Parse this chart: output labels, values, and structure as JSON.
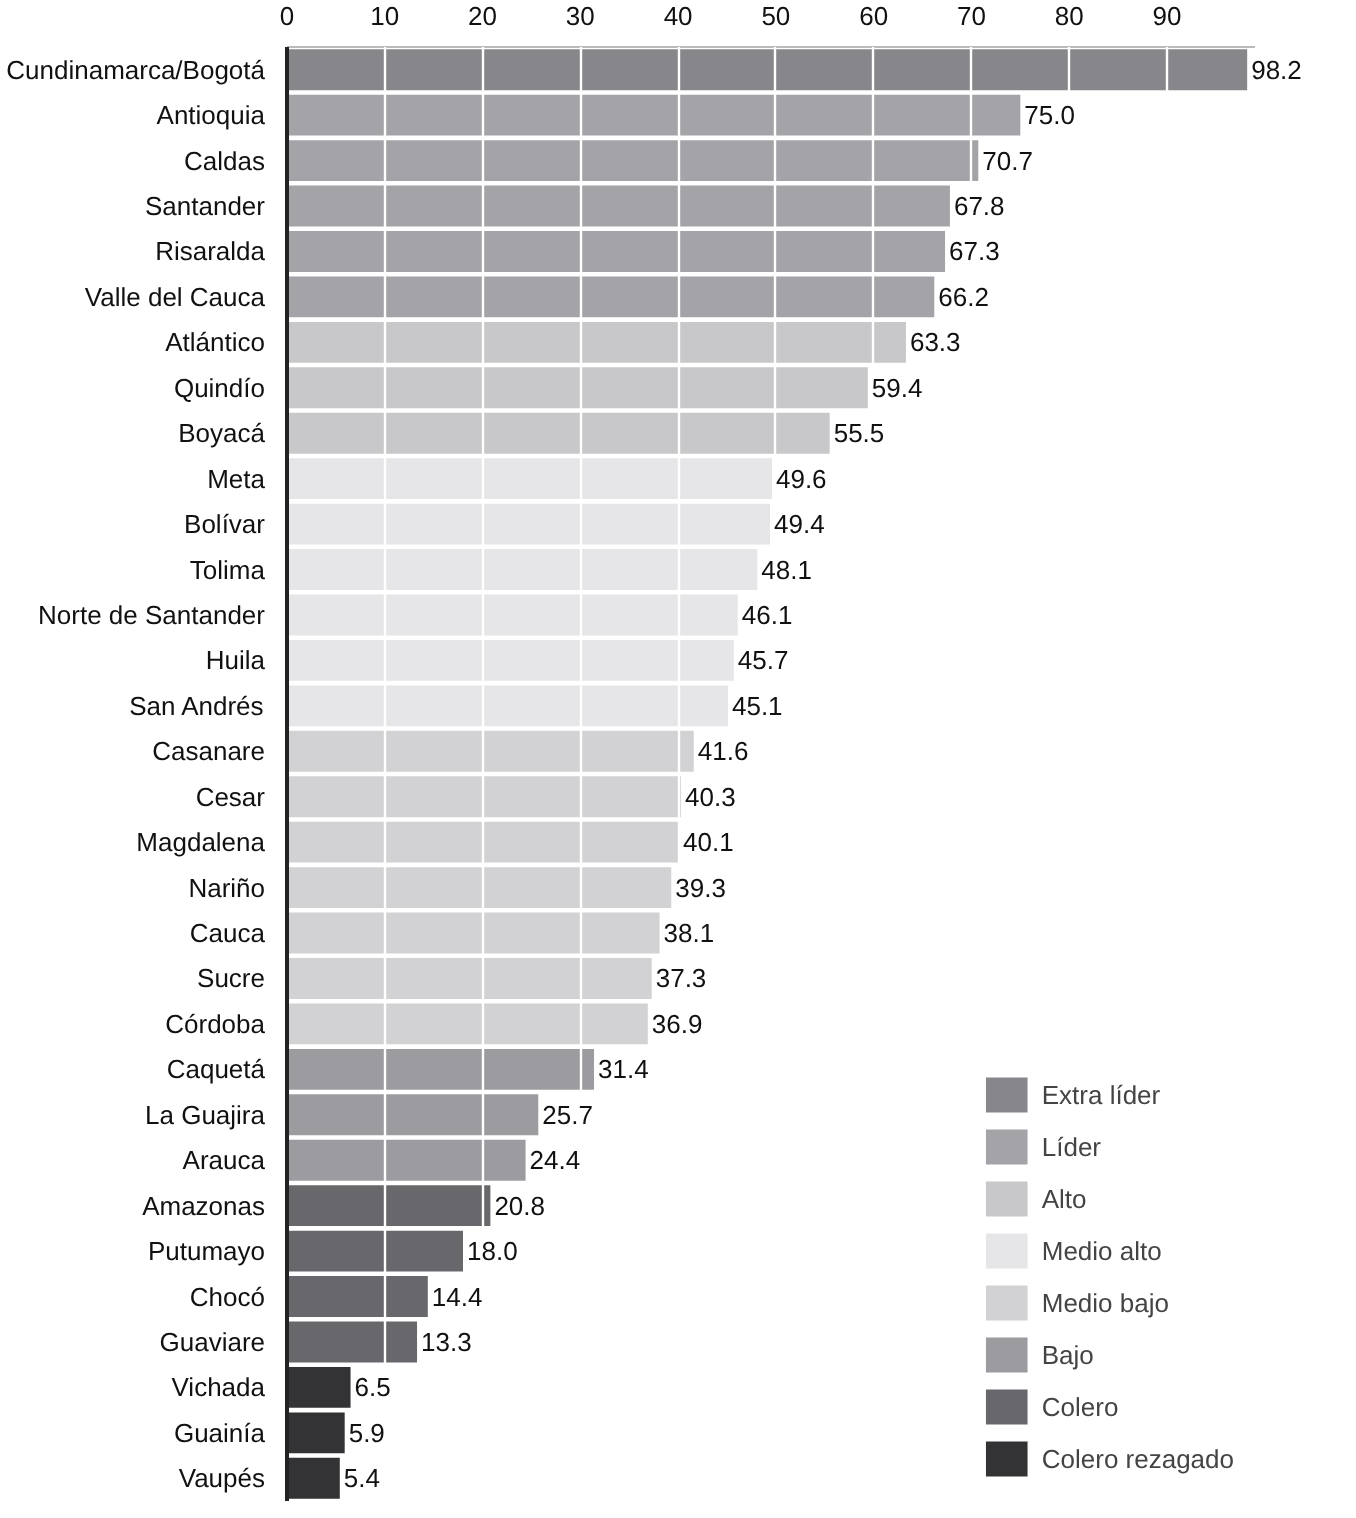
{
  "chart_data": {
    "type": "bar",
    "orientation": "horizontal",
    "categories": [
      "Cundinamarca/Bogotá",
      "Antioquia",
      "Caldas",
      "Santander",
      "Risaralda",
      "Valle del Cauca",
      "Atlántico",
      "Quindío",
      "Boyacá",
      "Meta",
      "Bolívar",
      "Tolima",
      "Norte de Santander",
      "Huila",
      "San Andrés",
      "Casanare",
      "Cesar",
      "Magdalena",
      "Nariño",
      "Cauca",
      "Sucre",
      "Córdoba",
      "Caquetá",
      "La Guajira",
      "Arauca",
      "Amazonas",
      "Putumayo",
      "Chocó",
      "Guaviare",
      "Vichada",
      "Guainía",
      "Vaupés"
    ],
    "series": [
      {
        "name": "Extra líder",
        "color": "#87878b",
        "values": [
          98.2,
          null,
          null,
          null,
          null,
          null,
          null,
          null,
          null,
          null,
          null,
          null,
          null,
          null,
          null,
          null,
          null,
          null,
          null,
          null,
          null,
          null,
          null,
          null,
          null,
          null,
          null,
          null,
          null,
          null,
          null,
          null
        ]
      },
      {
        "name": "Líder",
        "color": "#a4a4a8",
        "values": [
          null,
          75.0,
          70.7,
          67.8,
          67.3,
          66.2,
          null,
          null,
          null,
          null,
          null,
          null,
          null,
          null,
          null,
          null,
          null,
          null,
          null,
          null,
          null,
          null,
          null,
          null,
          null,
          null,
          null,
          null,
          null,
          null,
          null,
          null
        ]
      },
      {
        "name": "Alto",
        "color": "#c8c8ca",
        "values": [
          null,
          null,
          null,
          null,
          null,
          null,
          63.3,
          59.4,
          55.5,
          null,
          null,
          null,
          null,
          null,
          null,
          null,
          null,
          null,
          null,
          null,
          null,
          null,
          null,
          null,
          null,
          null,
          null,
          null,
          null,
          null,
          null,
          null
        ]
      },
      {
        "name": "Medio alto",
        "color": "#e6e6e8",
        "values": [
          null,
          null,
          null,
          null,
          null,
          null,
          null,
          null,
          null,
          49.6,
          49.4,
          48.1,
          46.1,
          45.7,
          45.1,
          null,
          null,
          null,
          null,
          null,
          null,
          null,
          null,
          null,
          null,
          null,
          null,
          null,
          null,
          null,
          null,
          null
        ]
      },
      {
        "name": "Medio bajo",
        "color": "#d2d2d4",
        "values": [
          null,
          null,
          null,
          null,
          null,
          null,
          null,
          null,
          null,
          null,
          null,
          null,
          null,
          null,
          null,
          41.6,
          40.3,
          40.1,
          39.3,
          38.1,
          37.3,
          36.9,
          null,
          null,
          null,
          null,
          null,
          null,
          null,
          null,
          null,
          null
        ]
      },
      {
        "name": "Bajo",
        "color": "#9c9ca0",
        "values": [
          null,
          null,
          null,
          null,
          null,
          null,
          null,
          null,
          null,
          null,
          null,
          null,
          null,
          null,
          null,
          null,
          null,
          null,
          null,
          null,
          null,
          null,
          31.4,
          25.7,
          24.4,
          null,
          null,
          null,
          null,
          null,
          null,
          null
        ]
      },
      {
        "name": "Colero",
        "color": "#68686c",
        "values": [
          null,
          null,
          null,
          null,
          null,
          null,
          null,
          null,
          null,
          null,
          null,
          null,
          null,
          null,
          null,
          null,
          null,
          null,
          null,
          null,
          null,
          null,
          null,
          null,
          null,
          20.8,
          18.0,
          14.4,
          13.3,
          null,
          null,
          null
        ]
      },
      {
        "name": "Colero rezagado",
        "color": "#333335",
        "values": [
          null,
          null,
          null,
          null,
          null,
          null,
          null,
          null,
          null,
          null,
          null,
          null,
          null,
          null,
          null,
          null,
          null,
          null,
          null,
          null,
          null,
          null,
          null,
          null,
          null,
          null,
          null,
          null,
          null,
          6.5,
          5.9,
          5.4
        ]
      }
    ],
    "xlim": [
      0,
      99
    ],
    "xticks": [
      0,
      10,
      20,
      30,
      40,
      50,
      60,
      70,
      80,
      90
    ],
    "value_labels": [
      "98.2",
      "75.0",
      "70.7",
      "67.8",
      "67.3",
      "66.2",
      "63.3",
      "59.4",
      "55.5",
      "49.6",
      "49.4",
      "48.1",
      "46.1",
      "45.7",
      "45.1",
      "41.6",
      "40.3",
      "40.1",
      "39.3",
      "38.1",
      "37.3",
      "36.9",
      "31.4",
      "25.7",
      "24.4",
      "20.8",
      "18.0",
      "14.4",
      "13.3",
      "6.5",
      "5.9",
      "5.4"
    ],
    "grid": "x",
    "legend": "bottom right"
  }
}
